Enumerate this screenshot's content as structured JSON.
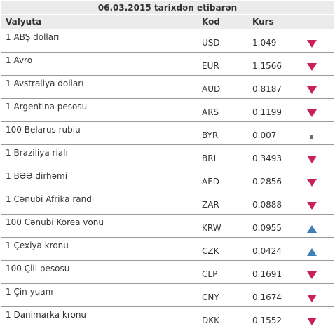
{
  "title": "06.03.2015 tarixdən etibarən",
  "headers": {
    "currency": "Valyuta",
    "code": "Kod",
    "rate": "Kurs"
  },
  "colors": {
    "down": "#c8205a",
    "up": "#3f7fb5",
    "same": "#6b6b6b"
  },
  "rows": [
    {
      "name": "1 ABŞ dolları",
      "code": "USD",
      "rate": "1.049",
      "trend": "down-icon"
    },
    {
      "name": "1 Avro",
      "code": "EUR",
      "rate": "1.1566",
      "trend": "down-icon"
    },
    {
      "name": "1 Avstraliya dolları",
      "code": "AUD",
      "rate": "0.8187",
      "trend": "down-icon"
    },
    {
      "name": "1 Argentina pesosu",
      "code": "ARS",
      "rate": "0.1199",
      "trend": "down-icon"
    },
    {
      "name": "100 Belarus rublu",
      "code": "BYR",
      "rate": "0.007",
      "trend": "no-change-icon"
    },
    {
      "name": "1 Braziliya rialı",
      "code": "BRL",
      "rate": "0.3493",
      "trend": "down-icon"
    },
    {
      "name": "1 BƏƏ dirhəmi",
      "code": "AED",
      "rate": "0.2856",
      "trend": "down-icon"
    },
    {
      "name": "1 Cənubi Afrika randı",
      "code": "ZAR",
      "rate": "0.0888",
      "trend": "down-icon"
    },
    {
      "name": "100 Cənubi Korea vonu",
      "code": "KRW",
      "rate": "0.0955",
      "trend": "up-icon"
    },
    {
      "name": "1 Çexiya kronu",
      "code": "CZK",
      "rate": "0.0424",
      "trend": "up-icon"
    },
    {
      "name": "100 Çili pesosu",
      "code": "CLP",
      "rate": "0.1691",
      "trend": "down-icon"
    },
    {
      "name": "1 Çin yuanı",
      "code": "CNY",
      "rate": "0.1674",
      "trend": "down-icon"
    },
    {
      "name": "1 Danimarka kronu",
      "code": "DKK",
      "rate": "0.1552",
      "trend": "down-icon"
    }
  ]
}
